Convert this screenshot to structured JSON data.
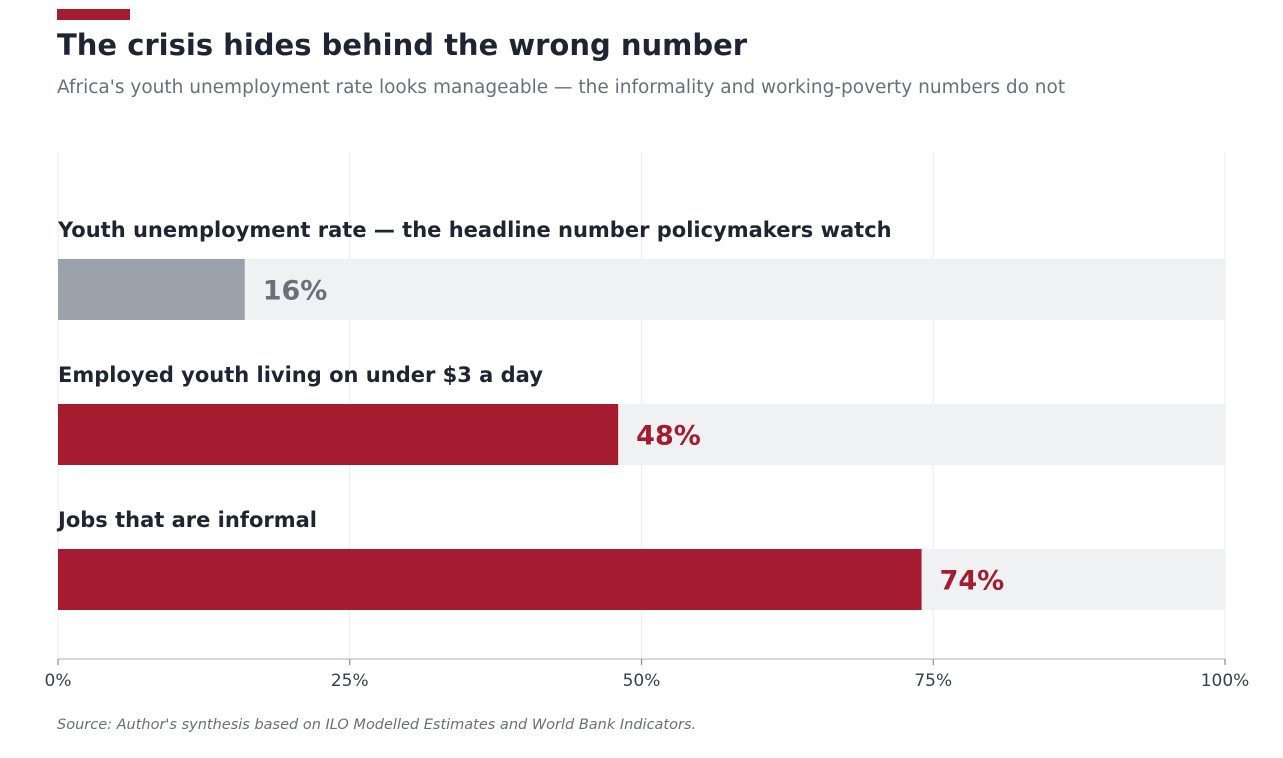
{
  "header": {
    "title": "The crisis hides behind the wrong number",
    "subtitle": "Africa's youth unemployment rate looks manageable — the informality and working-poverty numbers do not"
  },
  "footer": {
    "source": "Source: Author's synthesis based on ILO Modelled Estimates and World Bank Indicators."
  },
  "colors": {
    "accent": "#a51c30",
    "muted_bar": "#9ca2ab",
    "track": "#f0f1f3",
    "text_dark": "#1f2433",
    "text_muted": "#6b6f7b"
  },
  "chart_data": {
    "type": "bar",
    "orientation": "horizontal",
    "categories": [
      "Youth unemployment rate  —  the headline number policymakers watch",
      "Employed youth living on under $3 a day",
      "Jobs that are informal"
    ],
    "values": [
      16,
      48,
      74
    ],
    "value_labels": [
      "16%",
      "48%",
      "74%"
    ],
    "bar_colors": [
      "#9ca2ab",
      "#a51c30",
      "#a51c30"
    ],
    "label_colors": [
      "#6b6f7b",
      "#a51c30",
      "#a51c30"
    ],
    "xlim": [
      0,
      100
    ],
    "x_ticks": [
      0,
      25,
      50,
      75,
      100
    ],
    "x_tick_labels": [
      "0%",
      "25%",
      "50%",
      "75%",
      "100%"
    ],
    "grid": true
  }
}
